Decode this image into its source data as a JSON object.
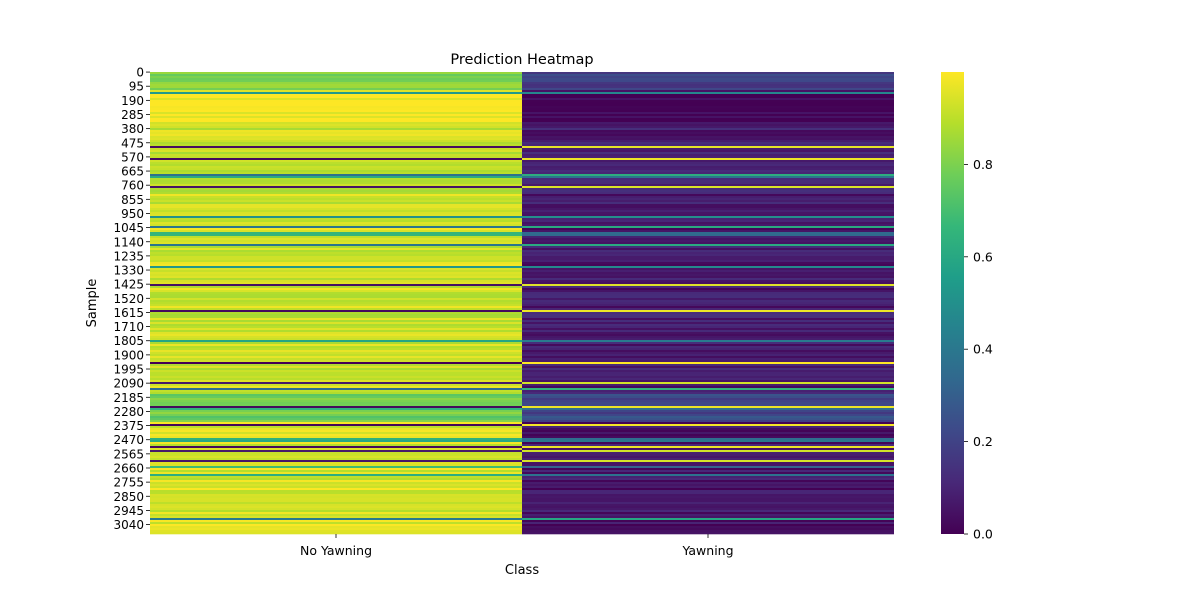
{
  "chart_data": {
    "type": "heatmap",
    "title": "Prediction Heatmap",
    "xlabel": "Class",
    "ylabel": "Sample",
    "columns": [
      "No Yawning",
      "Yawning"
    ],
    "n_samples": 3104,
    "y_tick_labels": [
      "0",
      "95",
      "190",
      "285",
      "380",
      "475",
      "570",
      "665",
      "760",
      "855",
      "950",
      "1045",
      "1140",
      "1235",
      "1330",
      "1425",
      "1520",
      "1615",
      "1710",
      "1805",
      "1900",
      "1995",
      "2090",
      "2185",
      "2280",
      "2375",
      "2470",
      "2565",
      "2660",
      "2755",
      "2850",
      "2945",
      "3040"
    ],
    "colorbar": {
      "min": 0.0,
      "max": 1.0,
      "ticks": [
        "0.0",
        "0.2",
        "0.4",
        "0.6",
        "0.8"
      ]
    },
    "colormap": "viridis",
    "color_stops": [
      "#440154",
      "#482878",
      "#3e4989",
      "#31688e",
      "#26828e",
      "#1f9e89",
      "#35b779",
      "#6ece58",
      "#b5de2b",
      "#fde725"
    ],
    "row_profile": {
      "description_of_values": "Yawning probability per sample; No Yawning = 1 - Yawning",
      "segments": [
        {
          "start": 0,
          "end": 120,
          "yawning": 0.18
        },
        {
          "start": 120,
          "end": 330,
          "yawning": 0.01
        },
        {
          "start": 330,
          "end": 900,
          "yawning": 0.08
        },
        {
          "start": 900,
          "end": 1600,
          "yawning": 0.07
        },
        {
          "start": 1600,
          "end": 2150,
          "yawning": 0.08
        },
        {
          "start": 2150,
          "end": 2350,
          "yawning": 0.22
        },
        {
          "start": 2350,
          "end": 3104,
          "yawning": 0.06
        }
      ]
    }
  }
}
